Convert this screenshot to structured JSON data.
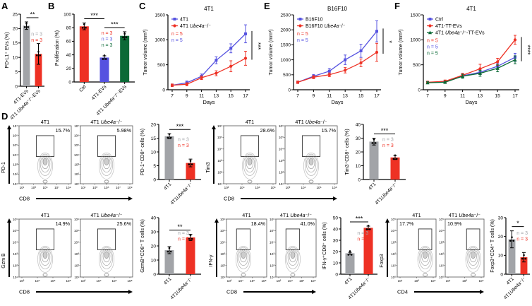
{
  "colors": {
    "gray": "#a2a4a8",
    "red": "#ee3124",
    "blue": "#5552e0",
    "green": "#0b6a36",
    "black": "#000000",
    "contour": "#8a8a8a"
  },
  "panels": {
    "A": {
      "label": "A"
    },
    "B": {
      "label": "B"
    },
    "C": {
      "label": "C"
    },
    "D": {
      "label": "D"
    },
    "E": {
      "label": "E"
    },
    "F": {
      "label": "F"
    }
  },
  "chart_data": [
    {
      "id": "A",
      "type": "bar",
      "ylabel": "PD-L1⁺ EVs (%)",
      "ylim": [
        0,
        25
      ],
      "yticks": [
        0,
        5,
        10,
        15,
        20,
        25
      ],
      "categories": [
        "4T1-EVs",
        "4T1 Ube4a⁻/⁻-EVs"
      ],
      "values": [
        21,
        11.2
      ],
      "errors": [
        1.3,
        3.6
      ],
      "bar_colors": [
        "gray",
        "red"
      ],
      "sig": [
        {
          "a": 0,
          "b": 1,
          "label": "**"
        }
      ],
      "n_labels": [
        {
          "text": "n = 3",
          "color": "gray"
        },
        {
          "text": "n = 3",
          "color": "red"
        }
      ]
    },
    {
      "id": "B",
      "type": "bar",
      "ylabel": "Proliferation (%)",
      "ylim": [
        0,
        100
      ],
      "yticks": [
        0,
        20,
        40,
        60,
        80,
        100
      ],
      "categories": [
        "Ctrl",
        "4T1-EVs",
        "4T1 Ube4a⁻/⁻-EVs"
      ],
      "values": [
        82,
        36,
        68
      ],
      "errors": [
        5,
        2.5,
        6
      ],
      "bar_colors": [
        "red",
        "blue",
        "green"
      ],
      "sig": [
        {
          "a": 0,
          "b": 1,
          "label": "***"
        },
        {
          "a": 1,
          "b": 2,
          "label": "***"
        }
      ],
      "n_labels": [
        {
          "text": "n = 3",
          "color": "red"
        },
        {
          "text": "n = 3",
          "color": "blue"
        },
        {
          "text": "n = 3",
          "color": "green"
        }
      ]
    },
    {
      "id": "C",
      "type": "line",
      "title": "4T1",
      "ylabel": "Tumor volume (mm³)",
      "xlabel": "Days",
      "x": [
        7,
        9,
        11,
        13,
        15,
        17
      ],
      "ylim": [
        0,
        1500
      ],
      "yticks": [
        0,
        500,
        1000,
        1500
      ],
      "series": [
        {
          "name": "4T1",
          "color": "blue",
          "marker": "square",
          "values": [
            90,
            140,
            270,
            590,
            830,
            1120
          ],
          "errors": [
            25,
            35,
            45,
            70,
            90,
            180
          ]
        },
        {
          "name": "4T1 Ube4a⁻/⁻",
          "color": "red",
          "marker": "circle",
          "values": [
            90,
            110,
            240,
            330,
            470,
            630
          ],
          "errors": [
            25,
            30,
            35,
            50,
            110,
            140
          ]
        }
      ],
      "sig": "***",
      "n_labels": [
        {
          "text": "n = 5",
          "color": "red"
        },
        {
          "text": "n = 5",
          "color": "blue"
        }
      ]
    },
    {
      "id": "E",
      "type": "line",
      "title": "B16F10",
      "ylabel": "Tumor volume (mm³)",
      "xlabel": "Days",
      "x": [
        7,
        9,
        11,
        13,
        15,
        17
      ],
      "ylim": [
        0,
        2500
      ],
      "yticks": [
        0,
        500,
        1000,
        1500,
        2000,
        2500
      ],
      "series": [
        {
          "name": "B16F10",
          "color": "blue",
          "marker": "square",
          "values": [
            250,
            450,
            620,
            1000,
            1300,
            1950
          ],
          "errors": [
            40,
            60,
            90,
            160,
            220,
            350
          ]
        },
        {
          "name": "B16F10 Ube4a⁻/⁻",
          "color": "red",
          "marker": "circle",
          "values": [
            250,
            420,
            500,
            650,
            900,
            1250
          ],
          "errors": [
            40,
            50,
            60,
            90,
            130,
            300
          ]
        }
      ],
      "sig": "*",
      "n_labels": [
        {
          "text": "n = 5",
          "color": "red"
        },
        {
          "text": "n = 5",
          "color": "blue"
        }
      ]
    },
    {
      "id": "F",
      "type": "line",
      "title": "4T1",
      "ylabel": "Tumor volume (mm³)",
      "xlabel": "Days",
      "x": [
        7,
        9,
        11,
        13,
        15,
        17
      ],
      "ylim": [
        0,
        1500
      ],
      "yticks": [
        0,
        500,
        1000,
        1500
      ],
      "series": [
        {
          "name": "Ctrl",
          "color": "blue",
          "marker": "square",
          "values": [
            150,
            160,
            280,
            350,
            470,
            650
          ],
          "errors": [
            20,
            20,
            35,
            45,
            60,
            80
          ]
        },
        {
          "name": "4T1-TT-EVs",
          "color": "red",
          "marker": "circle",
          "values": [
            150,
            170,
            290,
            420,
            560,
            1000
          ],
          "errors": [
            20,
            25,
            40,
            90,
            70,
            90
          ]
        },
        {
          "name": "4T1 Ube4a⁻/⁻-TT-EVs",
          "color": "green",
          "marker": "triangle",
          "values": [
            140,
            150,
            270,
            330,
            430,
            600
          ],
          "errors": [
            20,
            20,
            40,
            60,
            70,
            80
          ]
        }
      ],
      "sig": "****",
      "n_labels": [
        {
          "text": "n = 5",
          "color": "red"
        },
        {
          "text": "n = 5",
          "color": "blue"
        },
        {
          "text": "n = 5",
          "color": "green"
        }
      ]
    },
    {
      "id": "G1",
      "type": "flow",
      "marker_label": "PD-1",
      "xlabel": "CD8",
      "plots": [
        {
          "title": "4T1",
          "pct": "15.7%"
        },
        {
          "title": "4T1 Ube4a⁻/⁻",
          "pct": "5.98%"
        }
      ],
      "yticks": [
        "10⁷",
        "10⁶",
        "10⁵",
        "10⁴",
        "10³",
        "10²",
        "10¹"
      ],
      "xticks": [
        "10¹",
        "10³",
        "10⁵",
        "10⁷",
        "10⁹"
      ],
      "gate_x": 0.5,
      "pct_side": "right"
    },
    {
      "id": "G2",
      "type": "flow",
      "marker_label": "Tim3",
      "xlabel": "CD8",
      "plots": [
        {
          "title": "4T1",
          "pct": "28.6%"
        },
        {
          "title": "4T1 Ube4a⁻/⁻",
          "pct": "15.7%"
        }
      ],
      "yticks": [
        "10⁶",
        "10⁵",
        "10⁴",
        "10³",
        "10²",
        "10¹"
      ],
      "xticks": [
        "10²",
        "10⁴",
        "10⁶",
        "10⁸"
      ],
      "gate_x": 0.5,
      "pct_side": "right"
    },
    {
      "id": "G3",
      "type": "flow",
      "marker_label": "Gzm B",
      "xlabel": "CD8",
      "plots": [
        {
          "title": "4T1",
          "pct": "14.9%"
        },
        {
          "title": "4T1 Ube4a⁻/⁻",
          "pct": "25.6%"
        }
      ],
      "yticks": [
        "10⁶",
        "10⁵",
        "10⁴",
        "10³",
        "10²",
        "10¹"
      ],
      "xticks": [
        "10²",
        "10⁴",
        "10⁶",
        "10⁸"
      ],
      "gate_x": 0.5,
      "pct_side": "right"
    },
    {
      "id": "G4",
      "type": "flow",
      "marker_label": "IFN-γ",
      "xlabel": "CD8",
      "plots": [
        {
          "title": "4T1",
          "pct": "18.4%"
        },
        {
          "title": "4T1 Ube4a⁻/⁻",
          "pct": "41.0%"
        }
      ],
      "yticks": [
        "10⁶",
        "10⁵",
        "10⁴",
        "10³",
        "10²",
        "10¹"
      ],
      "xticks": [
        "10²",
        "10⁴",
        "10⁶",
        "10⁸"
      ],
      "gate_x": 0.42,
      "pct_side": "right"
    },
    {
      "id": "G5",
      "type": "flow",
      "marker_label": "Foxp3",
      "xlabel": "CD4",
      "plots": [
        {
          "title": "4T1",
          "pct": "17.7%"
        },
        {
          "title": "4T1 Ube4a⁻/⁻",
          "pct": "10.9%"
        }
      ],
      "yticks": [
        "10⁵",
        "10⁴",
        "10³",
        "10²",
        "10¹",
        "10⁰"
      ],
      "xticks": [
        "10¹",
        "10³",
        "10⁵"
      ],
      "gate_x": 0.72,
      "pct_side": "left"
    },
    {
      "id": "D1",
      "type": "bar",
      "ylabel": "PD-1⁺CD8⁺ cells (%)",
      "ylim": [
        0,
        20
      ],
      "yticks": [
        0,
        5,
        10,
        15,
        20
      ],
      "categories": [
        "4T1",
        "4T1Ube4a⁻/⁻"
      ],
      "values": [
        15.7,
        6.0
      ],
      "errors": [
        0.9,
        1.4
      ],
      "bar_colors": [
        "gray",
        "red"
      ],
      "sig": [
        {
          "a": 0,
          "b": 1,
          "label": "***"
        }
      ],
      "n_labels": [
        {
          "text": "n = 3",
          "color": "gray"
        },
        {
          "text": "n = 3",
          "color": "red"
        }
      ]
    },
    {
      "id": "D2",
      "type": "bar",
      "ylabel": "Tim3⁺CD8⁺ cells (%)",
      "ylim": [
        0,
        40
      ],
      "yticks": [
        0,
        10,
        20,
        30,
        40
      ],
      "categories": [
        "4T1",
        "4T1Ube4a⁻/⁻"
      ],
      "values": [
        27.5,
        16
      ],
      "errors": [
        2.5,
        1.5
      ],
      "bar_colors": [
        "gray",
        "red"
      ],
      "sig": [
        {
          "a": 0,
          "b": 1,
          "label": "***"
        }
      ],
      "n_labels": [
        {
          "text": "n = 3",
          "color": "gray"
        },
        {
          "text": "n = 3",
          "color": "red"
        }
      ]
    },
    {
      "id": "D3",
      "type": "bar",
      "ylabel": "GzmB⁺CD8⁺ T cells (%)",
      "ylim": [
        0,
        40
      ],
      "yticks": [
        0,
        10,
        20,
        30,
        40
      ],
      "categories": [
        "4T1",
        "4T1Ube4a⁻/⁻"
      ],
      "values": [
        17,
        26
      ],
      "errors": [
        2.5,
        2.2
      ],
      "bar_colors": [
        "gray",
        "red"
      ],
      "sig": [
        {
          "a": 0,
          "b": 1,
          "label": "**"
        }
      ],
      "n_labels": [
        {
          "text": "n = 3",
          "color": "gray"
        },
        {
          "text": "n = 3",
          "color": "red"
        }
      ]
    },
    {
      "id": "D4",
      "type": "bar",
      "ylabel": "IFN-γ⁺CD8⁺ cells (%)",
      "ylim": [
        0,
        50
      ],
      "yticks": [
        0,
        10,
        20,
        30,
        40,
        50
      ],
      "categories": [
        "4T1",
        "4T1Ube4a⁻/⁻"
      ],
      "values": [
        18.5,
        41
      ],
      "errors": [
        0.8,
        1.5
      ],
      "bar_colors": [
        "gray",
        "red"
      ],
      "sig": [
        {
          "a": 0,
          "b": 1,
          "label": "***"
        }
      ],
      "n_labels": [
        {
          "text": "n = 3",
          "color": "gray"
        },
        {
          "text": "n = 3",
          "color": "red"
        }
      ]
    },
    {
      "id": "D5",
      "type": "bar",
      "ylabel": "Foxp3⁺CD4⁺ T cells (%)",
      "ylim": [
        0,
        30
      ],
      "yticks": [
        0,
        10,
        20,
        30
      ],
      "categories": [
        "4T1",
        "4T1Ube4a⁻/⁻"
      ],
      "values": [
        18.5,
        9
      ],
      "errors": [
        4.5,
        2.5
      ],
      "bar_colors": [
        "gray",
        "red"
      ],
      "sig": [
        {
          "a": 0,
          "b": 1,
          "label": "*"
        }
      ],
      "n_labels": [
        {
          "text": "n = 3",
          "color": "gray"
        },
        {
          "text": "n = 3",
          "color": "red"
        }
      ]
    }
  ]
}
